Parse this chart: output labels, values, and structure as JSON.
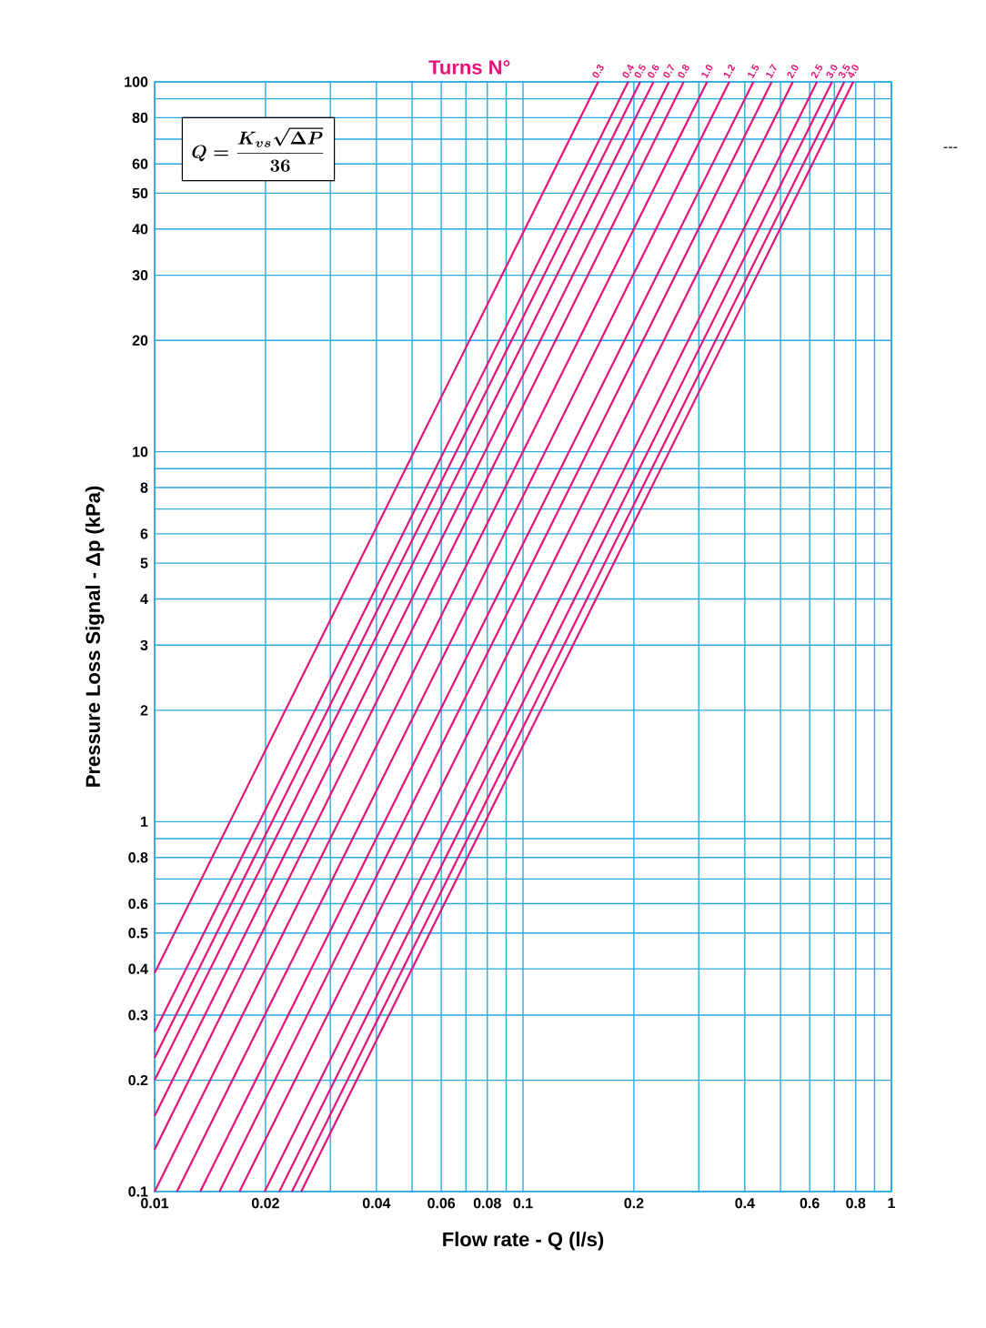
{
  "chart_data": {
    "type": "line",
    "xlabel": "Flow rate - Q (l/s)",
    "ylabel": "Pressure Loss Signal  - Δp (kPa)",
    "legend_title": "Turns N°",
    "annotations": [
      "Q = \\frac{K_{vs}\\sqrt{\\Delta P}}{36}",
      "---"
    ],
    "log": "xy",
    "grid": true,
    "xlim": [
      0.01,
      1
    ],
    "ylim": [
      0.1,
      100
    ],
    "xticks": [
      0.01,
      0.02,
      {
        "value": 0.03,
        "label": null
      },
      0.04,
      {
        "value": 0.05,
        "label": null
      },
      0.06,
      {
        "value": 0.07,
        "label": null
      },
      0.08,
      {
        "value": 0.09,
        "label": null
      },
      0.1,
      0.2,
      {
        "value": 0.3,
        "label": null
      },
      0.4,
      {
        "value": 0.5,
        "label": null
      },
      0.6,
      {
        "value": 0.7,
        "label": null
      },
      0.8,
      {
        "value": 0.9,
        "label": null
      },
      1
    ],
    "yticks": [
      0.1,
      0.2,
      0.3,
      0.4,
      0.5,
      0.6,
      {
        "value": 0.7,
        "label": null
      },
      0.8,
      {
        "value": 0.9,
        "label": null
      },
      1,
      2,
      3,
      4,
      5,
      6,
      {
        "value": 7,
        "label": null
      },
      8,
      {
        "value": 9,
        "label": null
      },
      10,
      20,
      30,
      40,
      50,
      60,
      {
        "value": 70,
        "label": null
      },
      80,
      {
        "value": 90,
        "label": null
      },
      100
    ],
    "series": [
      {
        "name": "0.3",
        "color": "#e2137b",
        "x": [
          0.01,
          0.16
        ],
        "values": [
          0.39,
          100
        ]
      },
      {
        "name": "0.4",
        "color": "#e2137b",
        "x": [
          0.01,
          0.193
        ],
        "values": [
          0.27,
          100
        ]
      },
      {
        "name": "0.5",
        "color": "#e2137b",
        "x": [
          0.01,
          0.208
        ],
        "values": [
          0.23,
          100
        ]
      },
      {
        "name": "0.6",
        "color": "#e2137b",
        "x": [
          0.01,
          0.226
        ],
        "values": [
          0.2,
          100
        ]
      },
      {
        "name": "0.7",
        "color": "#e2137b",
        "x": [
          0.01,
          0.249
        ],
        "values": [
          0.16,
          100
        ]
      },
      {
        "name": "0.8",
        "color": "#e2137b",
        "x": [
          0.01,
          0.273
        ],
        "values": [
          0.13,
          100
        ]
      },
      {
        "name": "1.0",
        "color": "#e2137b",
        "x": [
          0.01,
          0.316
        ],
        "values": [
          0.1,
          100
        ]
      },
      {
        "name": "1.2",
        "color": "#e2137b",
        "x": [
          0.0115,
          0.363
        ],
        "values": [
          0.1,
          100
        ]
      },
      {
        "name": "1.5",
        "color": "#e2137b",
        "x": [
          0.0133,
          0.422
        ],
        "values": [
          0.1,
          100
        ]
      },
      {
        "name": "1.7",
        "color": "#e2137b",
        "x": [
          0.015,
          0.473
        ],
        "values": [
          0.1,
          100
        ]
      },
      {
        "name": "2.0",
        "color": "#e2137b",
        "x": [
          0.017,
          0.54
        ],
        "values": [
          0.1,
          100
        ]
      },
      {
        "name": "2.5",
        "color": "#e2137b",
        "x": [
          0.0199,
          0.628
        ],
        "values": [
          0.1,
          100
        ]
      },
      {
        "name": "3.0",
        "color": "#e2137b",
        "x": [
          0.0218,
          0.69
        ],
        "values": [
          0.1,
          100
        ]
      },
      {
        "name": "3.5",
        "color": "#e2137b",
        "x": [
          0.0236,
          0.745
        ],
        "values": [
          0.1,
          100
        ]
      },
      {
        "name": "4.0",
        "color": "#e2137b",
        "x": [
          0.025,
          0.788
        ],
        "values": [
          0.1,
          100
        ]
      }
    ]
  }
}
